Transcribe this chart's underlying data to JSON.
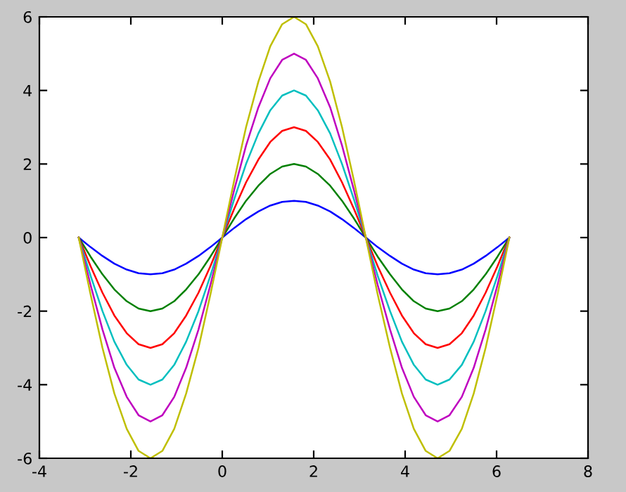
{
  "chart_data": {
    "type": "line",
    "xlim": [
      -4,
      8
    ],
    "ylim": [
      -6,
      6
    ],
    "xticks": [
      -4,
      -2,
      0,
      2,
      4,
      6,
      8
    ],
    "yticks": [
      -6,
      -4,
      -2,
      0,
      2,
      4,
      6
    ],
    "grid": false,
    "marker": "none",
    "line_style": "solid",
    "x": [
      -3.14,
      -2.88,
      -2.62,
      -2.36,
      -2.09,
      -1.83,
      -1.57,
      -1.31,
      -1.05,
      -0.79,
      -0.52,
      -0.26,
      0,
      0.26,
      0.52,
      0.79,
      1.05,
      1.31,
      1.57,
      1.83,
      2.09,
      2.36,
      2.62,
      2.88,
      3.14,
      3.4,
      3.67,
      3.93,
      4.19,
      4.45,
      4.71,
      4.97,
      5.24,
      5.5,
      5.76,
      6.02,
      6.28
    ],
    "series": [
      {
        "color": "#0000ff",
        "values": [
          0,
          -0.26,
          -0.5,
          -0.71,
          -0.87,
          -0.97,
          -1,
          -0.97,
          -0.87,
          -0.71,
          -0.5,
          -0.26,
          0,
          0.26,
          0.5,
          0.71,
          0.87,
          0.97,
          1,
          0.97,
          0.87,
          0.71,
          0.5,
          0.26,
          0,
          -0.26,
          -0.5,
          -0.71,
          -0.87,
          -0.97,
          -1,
          -0.97,
          -0.87,
          -0.71,
          -0.5,
          -0.26,
          0
        ]
      },
      {
        "color": "#008000",
        "values": [
          0,
          -0.52,
          -1,
          -1.41,
          -1.73,
          -1.93,
          -2,
          -1.93,
          -1.73,
          -1.41,
          -1,
          -0.52,
          0,
          0.52,
          1,
          1.41,
          1.73,
          1.93,
          2,
          1.93,
          1.73,
          1.41,
          1,
          0.52,
          0,
          -0.52,
          -1,
          -1.41,
          -1.73,
          -1.93,
          -2,
          -1.93,
          -1.73,
          -1.41,
          -1,
          -0.52,
          0
        ]
      },
      {
        "color": "#ff0000",
        "values": [
          0,
          -0.78,
          -1.5,
          -2.12,
          -2.6,
          -2.9,
          -3,
          -2.9,
          -2.6,
          -2.12,
          -1.5,
          -0.78,
          0,
          0.78,
          1.5,
          2.12,
          2.6,
          2.9,
          3,
          2.9,
          2.6,
          2.12,
          1.5,
          0.78,
          0,
          -0.78,
          -1.5,
          -2.12,
          -2.6,
          -2.9,
          -3,
          -2.9,
          -2.6,
          -2.12,
          -1.5,
          -0.78,
          0
        ]
      },
      {
        "color": "#00bfbf",
        "values": [
          0,
          -1.04,
          -2,
          -2.83,
          -3.46,
          -3.86,
          -4,
          -3.86,
          -3.46,
          -2.83,
          -2,
          -1.04,
          0,
          1.04,
          2,
          2.83,
          3.46,
          3.86,
          4,
          3.86,
          3.46,
          2.83,
          2,
          1.04,
          0,
          -1.04,
          -2,
          -2.83,
          -3.46,
          -3.86,
          -4,
          -3.86,
          -3.46,
          -2.83,
          -2,
          -1.04,
          0
        ]
      },
      {
        "color": "#bf00bf",
        "values": [
          0,
          -1.29,
          -2.5,
          -3.54,
          -4.33,
          -4.83,
          -5,
          -4.83,
          -4.33,
          -3.54,
          -2.5,
          -1.29,
          0,
          1.29,
          2.5,
          3.54,
          4.33,
          4.83,
          5,
          4.83,
          4.33,
          3.54,
          2.5,
          1.29,
          0,
          -1.29,
          -2.5,
          -3.54,
          -4.33,
          -4.83,
          -5,
          -4.83,
          -4.33,
          -3.54,
          -2.5,
          -1.29,
          0
        ]
      },
      {
        "color": "#bfbf00",
        "values": [
          0,
          -1.55,
          -3,
          -4.24,
          -5.2,
          -5.8,
          -6,
          -5.8,
          -5.2,
          -4.24,
          -3,
          -1.55,
          0,
          1.55,
          3,
          4.24,
          5.2,
          5.8,
          6,
          5.8,
          5.2,
          4.24,
          3,
          1.55,
          0,
          -1.55,
          -3,
          -4.24,
          -5.2,
          -5.8,
          -6,
          -5.8,
          -5.2,
          -4.24,
          -3,
          -1.55,
          0
        ]
      }
    ]
  }
}
